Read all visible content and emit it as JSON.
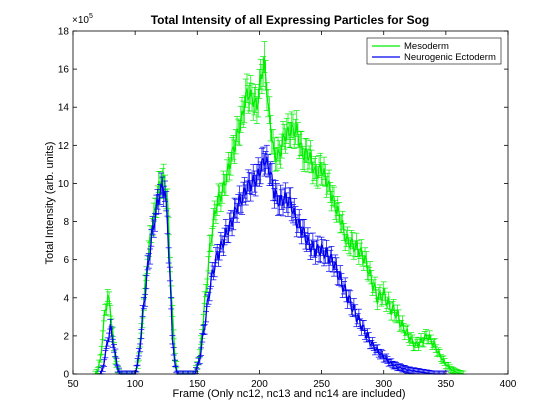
{
  "chart_data": {
    "type": "line",
    "title": "Total Intensity of all Expressing Particles for Sog",
    "xlabel": "Frame (Only nc12, nc13 and nc14 are included)",
    "ylabel": "Total Intensity (arb. units)",
    "xlim": [
      50,
      400
    ],
    "ylim": [
      0,
      18
    ],
    "y_multiplier_label": "×10",
    "y_multiplier_exponent": "5",
    "xticks": [
      "50",
      "100",
      "150",
      "200",
      "250",
      "300",
      "350",
      "400"
    ],
    "yticks": [
      "0",
      "2",
      "4",
      "6",
      "8",
      "10",
      "12",
      "14",
      "16",
      "18"
    ],
    "legend_position": "top-right",
    "grid": false,
    "error_bars": true,
    "series": [
      {
        "name": "Mesoderm",
        "color": "#00ee00",
        "x": [
          68,
          70,
          72,
          74,
          76,
          78,
          80,
          82,
          84,
          86,
          88,
          90,
          96,
          100,
          102,
          104,
          106,
          108,
          110,
          112,
          114,
          116,
          118,
          120,
          122,
          124,
          126,
          128,
          130,
          132,
          134,
          148,
          152,
          155,
          158,
          160,
          163,
          166,
          170,
          174,
          178,
          182,
          186,
          190,
          194,
          198,
          201,
          204,
          208,
          212,
          216,
          220,
          225,
          230,
          235,
          240,
          245,
          250,
          255,
          260,
          265,
          270,
          275,
          280,
          285,
          290,
          295,
          300,
          305,
          310,
          315,
          320,
          325,
          330,
          335,
          340,
          345,
          350,
          355,
          360,
          364
        ],
        "values": [
          0,
          0.2,
          0.8,
          2.0,
          3.5,
          3.9,
          3.6,
          2.0,
          0.8,
          0.2,
          0,
          0,
          0,
          0,
          0.5,
          1.5,
          3.0,
          4.5,
          6.0,
          7.0,
          8.0,
          8.5,
          9.5,
          10.0,
          10.2,
          10.0,
          9.0,
          6.0,
          3.0,
          1.0,
          0,
          0,
          1.0,
          3.0,
          5.0,
          6.5,
          8.0,
          9.0,
          9.5,
          10.5,
          11.5,
          12.5,
          13.5,
          14.8,
          14.5,
          14.0,
          15.5,
          16.3,
          13.5,
          11.5,
          11.5,
          12.5,
          12.8,
          12.8,
          11.5,
          11.5,
          10.5,
          10.8,
          10.0,
          9.0,
          8.2,
          7.0,
          6.8,
          6.5,
          6.0,
          5.0,
          4.0,
          4.2,
          3.5,
          3.2,
          2.5,
          2.0,
          1.5,
          1.7,
          2.0,
          1.6,
          1.0,
          0.5,
          0.2,
          0.05,
          0
        ]
      },
      {
        "name": "Neurogenic Ectoderm",
        "color": "#0000ee",
        "x": [
          72,
          74,
          76,
          78,
          80,
          82,
          84,
          86,
          88,
          96,
          100,
          102,
          104,
          106,
          108,
          110,
          112,
          114,
          116,
          118,
          120,
          122,
          124,
          126,
          128,
          130,
          132,
          134,
          148,
          152,
          155,
          158,
          160,
          163,
          166,
          170,
          174,
          178,
          182,
          186,
          190,
          194,
          198,
          201,
          204,
          208,
          212,
          216,
          220,
          225,
          230,
          235,
          240,
          245,
          250,
          255,
          260,
          265,
          270,
          275,
          280,
          285,
          290,
          295,
          300,
          305,
          310,
          315,
          320,
          325,
          330,
          335,
          340,
          345,
          350
        ],
        "values": [
          0,
          0.3,
          1.0,
          1.8,
          2.4,
          1.8,
          1.0,
          0.3,
          0,
          0,
          0,
          0.6,
          1.5,
          3.0,
          4.2,
          5.5,
          6.5,
          7.5,
          8.2,
          9.0,
          9.5,
          9.8,
          9.5,
          8.0,
          5.0,
          2.0,
          0.5,
          0,
          0,
          0.8,
          2.2,
          3.5,
          4.5,
          5.5,
          6.2,
          6.8,
          7.5,
          8.0,
          8.8,
          9.2,
          9.8,
          10.0,
          10.3,
          10.8,
          11.3,
          10.8,
          9.5,
          9.0,
          9.2,
          9.0,
          8.0,
          7.5,
          6.8,
          6.5,
          6.5,
          6.2,
          5.8,
          5.0,
          4.2,
          3.5,
          2.8,
          2.2,
          1.6,
          1.2,
          0.9,
          0.6,
          0.4,
          0.3,
          0.2,
          0.15,
          0.1,
          0.05,
          0,
          0,
          0
        ]
      }
    ]
  }
}
